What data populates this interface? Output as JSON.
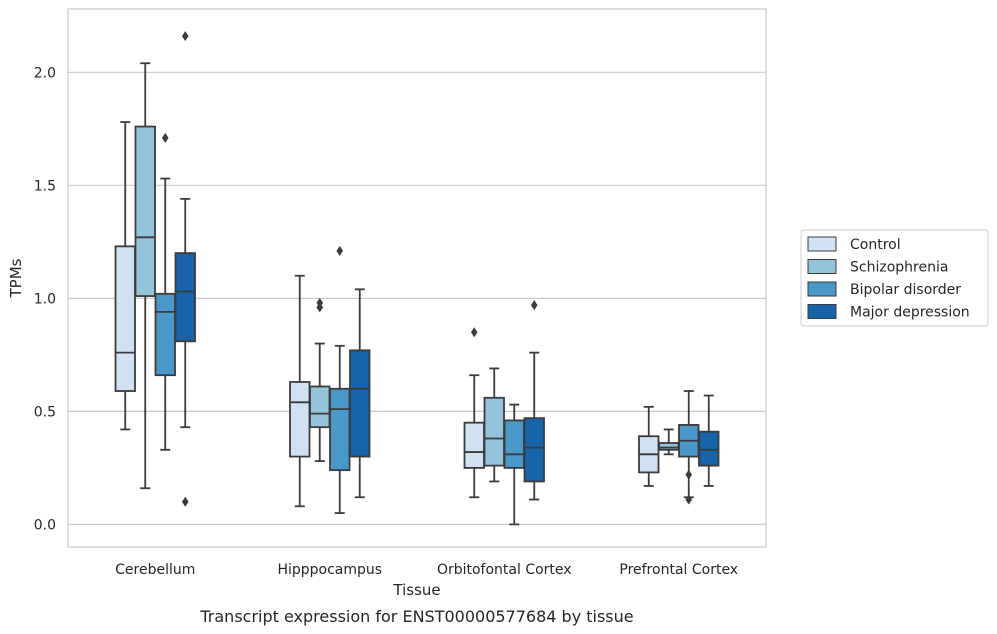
{
  "caption": "Transcript expression for ENST00000577684 by tissue",
  "colors": {
    "Control": "#cfe1f2",
    "Schizophrenia": "#93c4de",
    "Bipolar disorder": "#4a97c9",
    "Major depression": "#1764ab",
    "box_edge": "#3b3b3b",
    "grid": "#cccccc",
    "frame": "#cccccc"
  },
  "chart_data": {
    "type": "box",
    "xlabel": "Tissue",
    "ylabel": "TPMs",
    "ylim": [
      -0.1,
      2.28
    ],
    "yticks": [
      "0.0",
      "0.5",
      "1.0",
      "1.5",
      "2.0"
    ],
    "grid": "horizontal",
    "legend_position": "right",
    "categories": [
      "Cerebellum",
      "Hipppocampus",
      "Orbitofontal Cortex",
      "Prefrontal Cortex"
    ],
    "series": [
      {
        "name": "Control",
        "boxes": [
          {
            "whisker_low": 0.42,
            "q1": 0.59,
            "median": 0.76,
            "q3": 1.23,
            "whisker_high": 1.78,
            "outliers": []
          },
          {
            "whisker_low": 0.08,
            "q1": 0.3,
            "median": 0.54,
            "q3": 0.63,
            "whisker_high": 1.1,
            "outliers": []
          },
          {
            "whisker_low": 0.12,
            "q1": 0.25,
            "median": 0.32,
            "q3": 0.45,
            "whisker_high": 0.66,
            "outliers": [
              0.85
            ]
          },
          {
            "whisker_low": 0.17,
            "q1": 0.23,
            "median": 0.31,
            "q3": 0.39,
            "whisker_high": 0.52,
            "outliers": []
          }
        ]
      },
      {
        "name": "Schizophrenia",
        "boxes": [
          {
            "whisker_low": 0.16,
            "q1": 1.01,
            "median": 1.27,
            "q3": 1.76,
            "whisker_high": 2.04,
            "outliers": []
          },
          {
            "whisker_low": 0.28,
            "q1": 0.43,
            "median": 0.49,
            "q3": 0.61,
            "whisker_high": 0.8,
            "outliers": [
              0.96,
              0.98
            ]
          },
          {
            "whisker_low": 0.19,
            "q1": 0.26,
            "median": 0.38,
            "q3": 0.56,
            "whisker_high": 0.69,
            "outliers": []
          },
          {
            "whisker_low": 0.31,
            "q1": 0.33,
            "median": 0.34,
            "q3": 0.36,
            "whisker_high": 0.42,
            "outliers": []
          }
        ]
      },
      {
        "name": "Bipolar disorder",
        "boxes": [
          {
            "whisker_low": 0.33,
            "q1": 0.66,
            "median": 0.94,
            "q3": 1.02,
            "whisker_high": 1.53,
            "outliers": [
              1.71
            ]
          },
          {
            "whisker_low": 0.05,
            "q1": 0.24,
            "median": 0.51,
            "q3": 0.6,
            "whisker_high": 0.79,
            "outliers": [
              1.21
            ]
          },
          {
            "whisker_low": 0.0,
            "q1": 0.25,
            "median": 0.31,
            "q3": 0.46,
            "whisker_high": 0.53,
            "outliers": []
          },
          {
            "whisker_low": 0.12,
            "q1": 0.3,
            "median": 0.37,
            "q3": 0.44,
            "whisker_high": 0.59,
            "outliers": [
              0.22,
              0.11
            ]
          }
        ]
      },
      {
        "name": "Major depression",
        "boxes": [
          {
            "whisker_low": 0.43,
            "q1": 0.81,
            "median": 1.03,
            "q3": 1.2,
            "whisker_high": 1.44,
            "outliers": [
              2.16,
              0.1
            ]
          },
          {
            "whisker_low": 0.12,
            "q1": 0.3,
            "median": 0.6,
            "q3": 0.77,
            "whisker_high": 1.04,
            "outliers": []
          },
          {
            "whisker_low": 0.11,
            "q1": 0.19,
            "median": 0.34,
            "q3": 0.47,
            "whisker_high": 0.76,
            "outliers": [
              0.97
            ]
          },
          {
            "whisker_low": 0.17,
            "q1": 0.26,
            "median": 0.33,
            "q3": 0.41,
            "whisker_high": 0.57,
            "outliers": []
          }
        ]
      }
    ]
  }
}
